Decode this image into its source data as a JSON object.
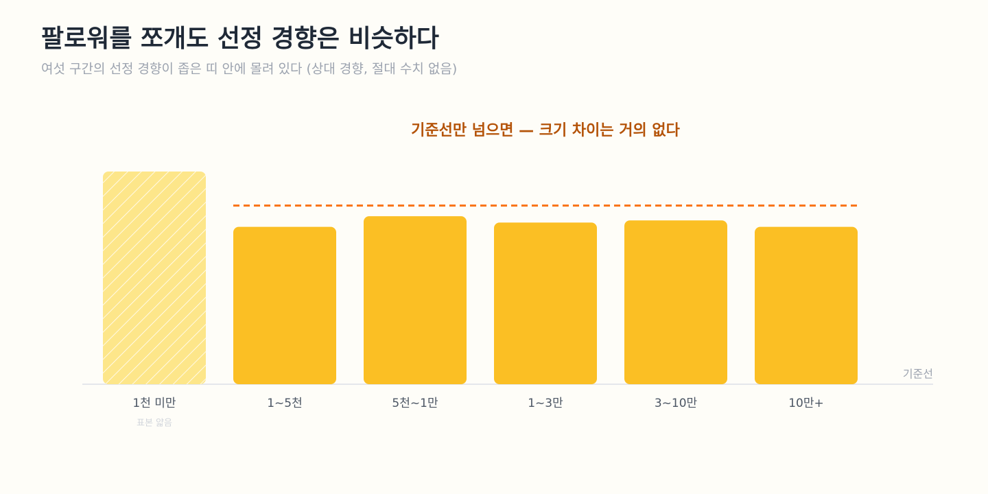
{
  "chart_data": {
    "type": "bar",
    "title": "팔로워를 쪼개도 선정 경향은 비슷하다",
    "subtitle": "여섯 구간의 선정 경향이 좁은 띠 안에 몰려 있다 (상대 경향, 절대 수치 없음)",
    "annotation": "기준선만 넘으면 — 크기 차이는 거의 없다",
    "annotation_color": "#b45309",
    "categories": [
      "1천 미만",
      "1~5천",
      "5천~1만",
      "1~3만",
      "3~10만",
      "10만+"
    ],
    "sublabels": [
      "표본 얇음",
      null,
      null,
      null,
      null,
      null
    ],
    "values": [
      100,
      74,
      79,
      76,
      77,
      74
    ],
    "colors": [
      "#fde68a",
      "#fbbf24",
      "#fbbf24",
      "#fbbf24",
      "#fbbf24",
      "#fbbf24"
    ],
    "hatched": [
      true,
      false,
      false,
      false,
      false,
      false
    ],
    "reference": {
      "value": 84,
      "label": "기준선",
      "color": "#f97316"
    },
    "ylim": [
      0,
      100
    ]
  }
}
